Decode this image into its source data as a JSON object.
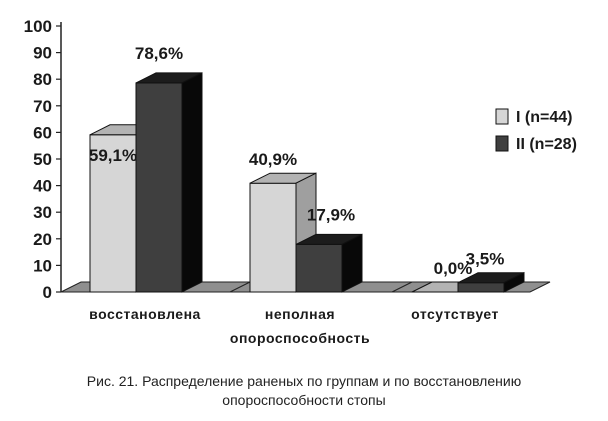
{
  "chart_data": {
    "type": "bar",
    "categories": [
      [
        "восстановлена"
      ],
      [
        "неполная",
        "опороспособность"
      ],
      [
        "отсутствует"
      ]
    ],
    "series": [
      {
        "name": "I (n=44)",
        "values": [
          59.1,
          40.9,
          0.0
        ],
        "labels": [
          "59,1%",
          "40,9%",
          "0,0%"
        ],
        "color": "#d6d6d6"
      },
      {
        "name": "II (n=28)",
        "values": [
          78.6,
          17.9,
          3.5
        ],
        "labels": [
          "78,6%",
          "17,9%",
          "3,5%"
        ],
        "color": "#3f3f3f"
      }
    ],
    "yticks": [
      "0",
      "10",
      "20",
      "30",
      "40",
      "50",
      "60",
      "70",
      "80",
      "90",
      "100"
    ],
    "ylim": [
      0,
      100
    ],
    "legend_position": "right",
    "grid": false,
    "style": "3d-bar"
  },
  "caption": {
    "line1": "Рис. 21. Распределение раненых по группам и по восстановлению",
    "line2": "опороспособности стопы"
  }
}
